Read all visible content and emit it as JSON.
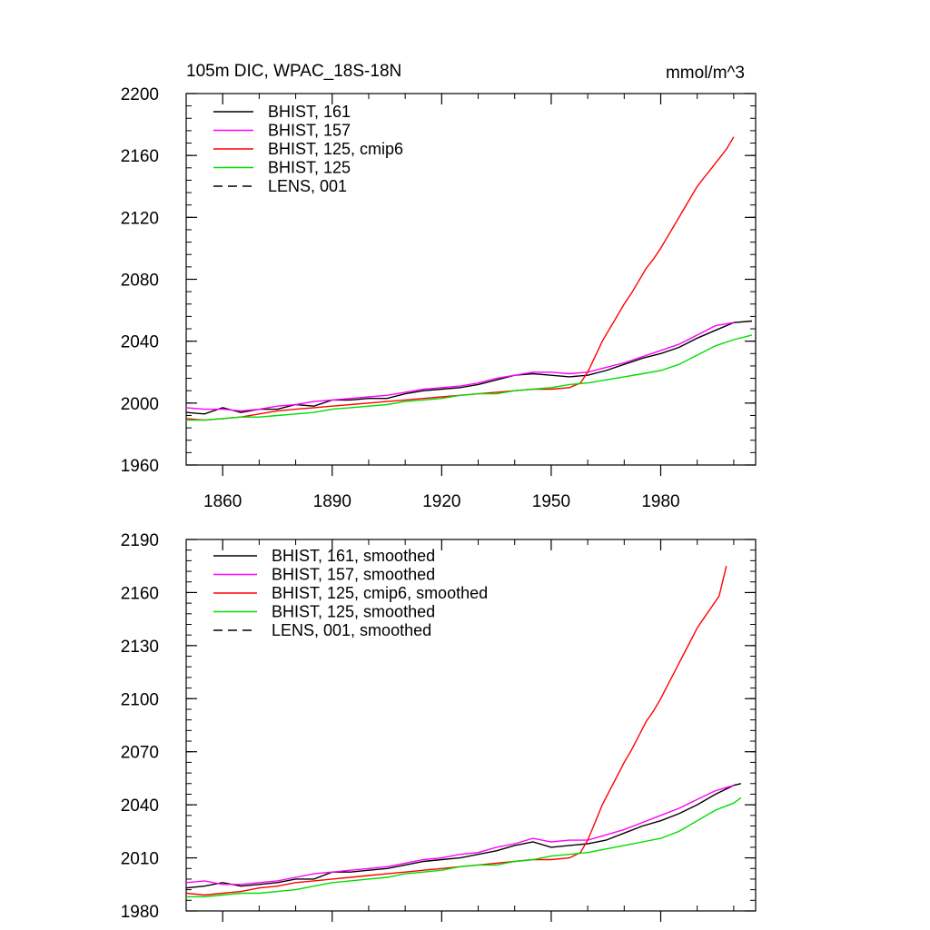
{
  "header": {
    "title": "105m DIC, WPAC_18S-18N",
    "units": "mmol/m^3"
  },
  "colors": {
    "black": "#000000",
    "magenta": "#ff00ff",
    "red": "#ff0000",
    "green": "#00dd00"
  },
  "chart_data": [
    {
      "type": "line",
      "title": "105m DIC, WPAC_18S-18N",
      "units": "mmol/m^3",
      "xlim": [
        1850,
        2006
      ],
      "ylim": [
        1960,
        2200
      ],
      "xticks": [
        1860,
        1890,
        1920,
        1950,
        1980
      ],
      "yticks": [
        1960,
        2000,
        2040,
        2080,
        2120,
        2160,
        2200
      ],
      "xtick_labels": [
        "1860",
        "1890",
        "1920",
        "1950",
        "1980"
      ],
      "ytick_labels": [
        "1960",
        "2000",
        "2040",
        "2080",
        "2120",
        "2160",
        "2200"
      ],
      "legend_position": "top-left",
      "grid": false,
      "series": [
        {
          "name": "BHIST, 161",
          "color": "#000000",
          "dash": false,
          "x": [
            1850,
            1855,
            1860,
            1865,
            1870,
            1875,
            1880,
            1885,
            1890,
            1895,
            1900,
            1905,
            1910,
            1915,
            1920,
            1925,
            1930,
            1935,
            1940,
            1945,
            1950,
            1955,
            1960,
            1965,
            1970,
            1975,
            1980,
            1985,
            1990,
            1995,
            2000,
            2005
          ],
          "y": [
            1994,
            1993,
            1997,
            1994,
            1996,
            1996,
            1999,
            1998,
            2002,
            2002,
            2003,
            2003,
            2006,
            2008,
            2009,
            2010,
            2012,
            2015,
            2018,
            2019,
            2018,
            2017,
            2018,
            2021,
            2025,
            2029,
            2032,
            2036,
            2042,
            2047,
            2052,
            2053
          ]
        },
        {
          "name": "BHIST, 157",
          "color": "#ff00ff",
          "dash": false,
          "x": [
            1850,
            1855,
            1860,
            1865,
            1870,
            1875,
            1880,
            1885,
            1890,
            1895,
            1900,
            1905,
            1910,
            1915,
            1920,
            1925,
            1930,
            1935,
            1940,
            1945,
            1950,
            1955,
            1960,
            1965,
            1970,
            1975,
            1980,
            1985,
            1990,
            1995,
            2000
          ],
          "y": [
            1997,
            1996,
            1996,
            1995,
            1996,
            1998,
            1999,
            2001,
            2002,
            2003,
            2004,
            2005,
            2007,
            2009,
            2010,
            2011,
            2013,
            2016,
            2018,
            2020,
            2020,
            2019,
            2020,
            2023,
            2026,
            2030,
            2034,
            2038,
            2044,
            2050,
            2052
          ]
        },
        {
          "name": "BHIST, 125, cmip6",
          "color": "#ff0000",
          "dash": false,
          "x": [
            1850,
            1855,
            1860,
            1865,
            1870,
            1875,
            1880,
            1885,
            1890,
            1895,
            1900,
            1905,
            1910,
            1915,
            1920,
            1925,
            1930,
            1935,
            1940,
            1945,
            1950,
            1955,
            1958,
            1960,
            1962,
            1964,
            1966,
            1968,
            1970,
            1972,
            1974,
            1976,
            1978,
            1980,
            1982,
            1984,
            1986,
            1988,
            1990,
            1992,
            1994,
            1996,
            1998,
            2000
          ],
          "y": [
            1990,
            1989,
            1990,
            1991,
            1993,
            1995,
            1996,
            1997,
            1998,
            1999,
            2000,
            2001,
            2002,
            2003,
            2004,
            2005,
            2006,
            2007,
            2008,
            2009,
            2009,
            2010,
            2013,
            2020,
            2030,
            2040,
            2048,
            2056,
            2064,
            2071,
            2079,
            2087,
            2093,
            2100,
            2108,
            2116,
            2124,
            2132,
            2140,
            2146,
            2152,
            2158,
            2164,
            2172
          ]
        },
        {
          "name": "BHIST, 125",
          "color": "#00dd00",
          "dash": false,
          "x": [
            1850,
            1855,
            1860,
            1865,
            1870,
            1875,
            1880,
            1885,
            1890,
            1895,
            1900,
            1905,
            1910,
            1915,
            1920,
            1925,
            1930,
            1935,
            1940,
            1945,
            1950,
            1955,
            1960,
            1965,
            1970,
            1975,
            1980,
            1985,
            1990,
            1995,
            2000,
            2005
          ],
          "y": [
            1989,
            1989,
            1990,
            1991,
            1991,
            1992,
            1993,
            1994,
            1996,
            1997,
            1998,
            1999,
            2001,
            2002,
            2003,
            2005,
            2006,
            2006,
            2008,
            2009,
            2010,
            2012,
            2013,
            2015,
            2017,
            2019,
            2021,
            2025,
            2031,
            2037,
            2041,
            2044
          ]
        },
        {
          "name": "LENS, 001",
          "color": "#000000",
          "dash": true,
          "x": [],
          "y": []
        }
      ]
    },
    {
      "type": "line",
      "title": "",
      "xlim": [
        1850,
        2006
      ],
      "ylim": [
        1980,
        2190
      ],
      "xticks": [
        1860,
        1890,
        1920,
        1950,
        1980
      ],
      "yticks": [
        1980,
        2010,
        2040,
        2070,
        2100,
        2130,
        2160,
        2190
      ],
      "ytick_labels": [
        "1980",
        "2010",
        "2040",
        "2070",
        "2100",
        "2130",
        "2160",
        "2190"
      ],
      "legend_position": "top-left",
      "grid": false,
      "series": [
        {
          "name": "BHIST, 161, smoothed",
          "color": "#000000",
          "dash": false,
          "x": [
            1850,
            1855,
            1860,
            1865,
            1870,
            1875,
            1880,
            1885,
            1890,
            1895,
            1900,
            1905,
            1910,
            1915,
            1920,
            1925,
            1930,
            1935,
            1940,
            1945,
            1950,
            1955,
            1960,
            1965,
            1970,
            1975,
            1980,
            1985,
            1990,
            1995,
            2000,
            2002
          ],
          "y": [
            1993,
            1994,
            1996,
            1994,
            1995,
            1996,
            1998,
            1998,
            2002,
            2002,
            2003,
            2004,
            2006,
            2008,
            2009,
            2010,
            2012,
            2014,
            2017,
            2019,
            2016,
            2017,
            2018,
            2020,
            2024,
            2028,
            2031,
            2035,
            2040,
            2046,
            2051,
            2052
          ]
        },
        {
          "name": "BHIST, 157, smoothed",
          "color": "#ff00ff",
          "dash": false,
          "x": [
            1850,
            1855,
            1860,
            1865,
            1870,
            1875,
            1880,
            1885,
            1890,
            1895,
            1900,
            1905,
            1910,
            1915,
            1920,
            1925,
            1930,
            1935,
            1940,
            1945,
            1950,
            1955,
            1960,
            1965,
            1970,
            1975,
            1980,
            1985,
            1990,
            1995,
            2000
          ],
          "y": [
            1996,
            1997,
            1995,
            1995,
            1996,
            1997,
            1999,
            2001,
            2002,
            2003,
            2004,
            2005,
            2007,
            2009,
            2010,
            2012,
            2013,
            2016,
            2018,
            2021,
            2019,
            2020,
            2020,
            2023,
            2026,
            2030,
            2034,
            2038,
            2043,
            2048,
            2051
          ]
        },
        {
          "name": "BHIST, 125, cmip6, smoothed",
          "color": "#ff0000",
          "dash": false,
          "x": [
            1850,
            1855,
            1860,
            1865,
            1870,
            1875,
            1880,
            1885,
            1890,
            1895,
            1900,
            1905,
            1910,
            1915,
            1920,
            1925,
            1930,
            1935,
            1940,
            1945,
            1950,
            1955,
            1958,
            1960,
            1962,
            1964,
            1966,
            1968,
            1970,
            1972,
            1974,
            1976,
            1978,
            1980,
            1982,
            1984,
            1986,
            1988,
            1990,
            1992,
            1994,
            1996,
            1998
          ],
          "y": [
            1990,
            1989,
            1990,
            1991,
            1993,
            1994,
            1996,
            1997,
            1998,
            1999,
            2000,
            2001,
            2002,
            2003,
            2004,
            2005,
            2006,
            2007,
            2008,
            2009,
            2009,
            2010,
            2013,
            2020,
            2030,
            2040,
            2048,
            2056,
            2064,
            2071,
            2079,
            2087,
            2093,
            2100,
            2108,
            2116,
            2124,
            2132,
            2140,
            2146,
            2152,
            2158,
            2175
          ]
        },
        {
          "name": "BHIST, 125, smoothed",
          "color": "#00dd00",
          "dash": false,
          "x": [
            1850,
            1855,
            1860,
            1865,
            1870,
            1875,
            1880,
            1885,
            1890,
            1895,
            1900,
            1905,
            1910,
            1915,
            1920,
            1925,
            1930,
            1935,
            1940,
            1945,
            1950,
            1955,
            1960,
            1965,
            1970,
            1975,
            1980,
            1985,
            1990,
            1995,
            2000,
            2002
          ],
          "y": [
            1988,
            1988,
            1989,
            1990,
            1990,
            1991,
            1992,
            1994,
            1996,
            1997,
            1998,
            1999,
            2001,
            2002,
            2003,
            2005,
            2006,
            2006,
            2008,
            2009,
            2011,
            2012,
            2013,
            2015,
            2017,
            2019,
            2021,
            2025,
            2031,
            2037,
            2041,
            2044
          ]
        },
        {
          "name": "LENS, 001, smoothed",
          "color": "#000000",
          "dash": true,
          "x": [],
          "y": []
        }
      ]
    }
  ]
}
